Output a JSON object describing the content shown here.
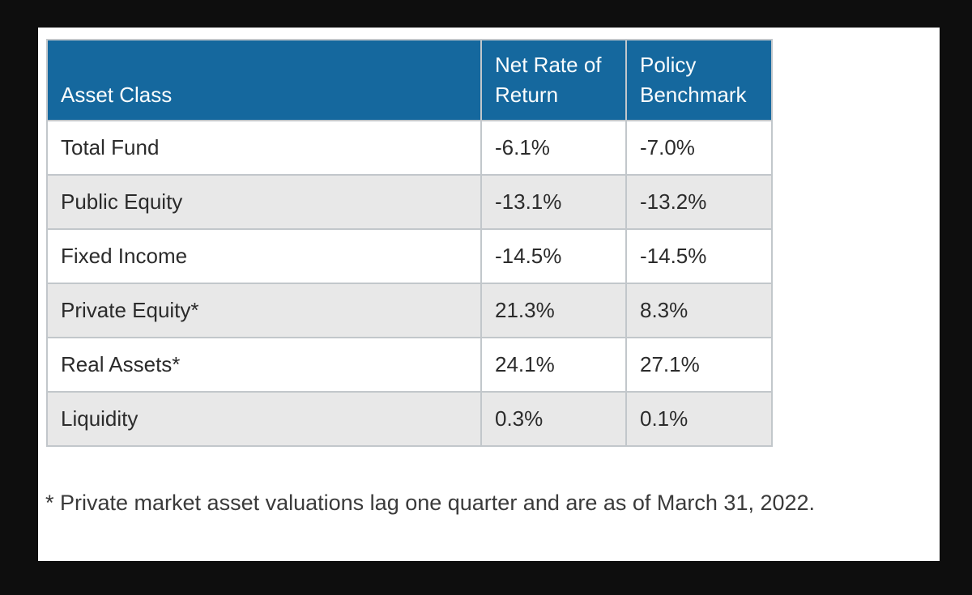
{
  "colors": {
    "page_bg": "#0e0e0e",
    "panel_bg": "#ffffff",
    "header_bg": "#15689e",
    "header_text": "#fbfdfd",
    "row_bg": "#ffffff",
    "row_alt_bg": "#e8e8e8",
    "border_color": "#c2c7cb",
    "cell_text": "#2b2b2b",
    "footnote_text": "#3a3a3a"
  },
  "chart_data": {
    "type": "table",
    "columns": [
      "Asset Class",
      "Net Rate of Return",
      "Policy Benchmark"
    ],
    "rows": [
      [
        "Total Fund",
        "-6.1%",
        "-7.0%"
      ],
      [
        "Public Equity",
        "-13.1%",
        "-13.2%"
      ],
      [
        "Fixed Income",
        "-14.5%",
        "-14.5%"
      ],
      [
        "Private Equity*",
        "21.3%",
        "8.3%"
      ],
      [
        "Real Assets*",
        "24.1%",
        "27.1%"
      ],
      [
        "Liquidity",
        "0.3%",
        "0.1%"
      ]
    ],
    "series": [
      {
        "name": "Net Rate of Return (%)",
        "values": [
          -6.1,
          -13.1,
          -14.5,
          21.3,
          24.1,
          0.3
        ]
      },
      {
        "name": "Policy Benchmark (%)",
        "values": [
          -7.0,
          -13.2,
          -14.5,
          8.3,
          27.1,
          0.1
        ]
      }
    ],
    "categories": [
      "Total Fund",
      "Public Equity",
      "Fixed Income",
      "Private Equity*",
      "Real Assets*",
      "Liquidity"
    ]
  },
  "footnote": {
    "text": "* Private market asset valuations lag one quarter and are as of March 31, 2022."
  }
}
